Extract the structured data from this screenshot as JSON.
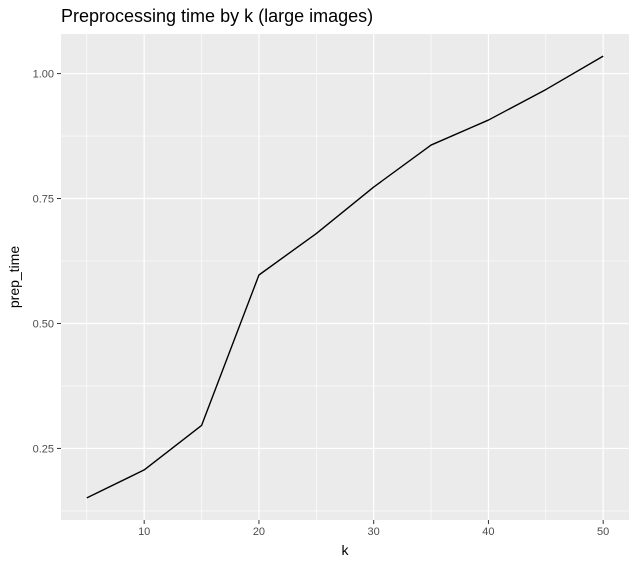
{
  "chart_data": {
    "type": "line",
    "title": "Preprocessing time by k (large images)",
    "xlabel": "k",
    "ylabel": "prep_time",
    "x": [
      5,
      10,
      15,
      20,
      25,
      30,
      35,
      40,
      45,
      50
    ],
    "series": [
      {
        "values": [
          0.151,
          0.207,
          0.296,
          0.597,
          0.68,
          0.773,
          0.857,
          0.907,
          0.968,
          1.035
        ],
        "color": "#000000"
      }
    ],
    "x_ticks": [
      10,
      20,
      30,
      40,
      50
    ],
    "x_tick_labels": [
      "10",
      "20",
      "30",
      "40",
      "50"
    ],
    "y_ticks": [
      0.25,
      0.5,
      0.75,
      1.0
    ],
    "y_tick_labels": [
      "0.25",
      "0.50",
      "0.75",
      "1.00"
    ],
    "xlim": [
      2.75,
      52.25
    ],
    "ylim": [
      0.1068,
      1.0792
    ],
    "grid": true,
    "panel_color": "#ebebeb",
    "grid_color": "#ffffff"
  }
}
